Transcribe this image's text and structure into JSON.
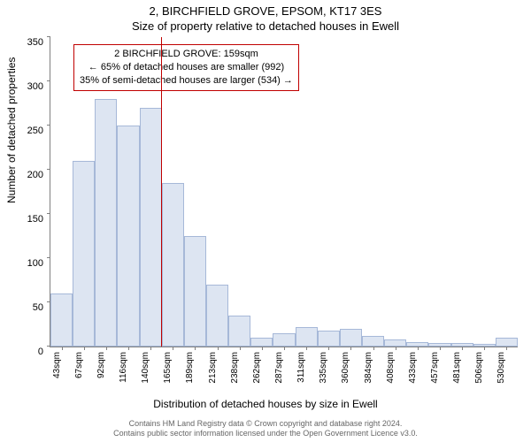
{
  "title_line1": "2, BIRCHFIELD GROVE, EPSOM, KT17 3ES",
  "title_line2": "Size of property relative to detached houses in Ewell",
  "ylabel": "Number of detached properties",
  "xlabel": "Distribution of detached houses by size in Ewell",
  "chart": {
    "type": "histogram",
    "ylim": [
      0,
      350
    ],
    "ytick_step": 50,
    "yticks": [
      0,
      50,
      100,
      150,
      200,
      250,
      300,
      350
    ],
    "categories": [
      "43sqm",
      "67sqm",
      "92sqm",
      "116sqm",
      "140sqm",
      "165sqm",
      "189sqm",
      "213sqm",
      "238sqm",
      "262sqm",
      "287sqm",
      "311sqm",
      "335sqm",
      "360sqm",
      "384sqm",
      "408sqm",
      "433sqm",
      "457sqm",
      "481sqm",
      "506sqm",
      "530sqm"
    ],
    "values": [
      60,
      210,
      280,
      250,
      270,
      185,
      125,
      70,
      35,
      10,
      15,
      22,
      18,
      20,
      12,
      8,
      5,
      4,
      4,
      3,
      10
    ],
    "bar_fill": "#dde5f2",
    "bar_border": "#a6b8d8",
    "axis_color": "#808080",
    "background_color": "#ffffff",
    "marker_line_color": "#c00000",
    "marker_between_index": [
      4,
      5
    ]
  },
  "annotation": {
    "border_color": "#c00000",
    "line1": "2 BIRCHFIELD GROVE: 159sqm",
    "line2": "← 65% of detached houses are smaller (992)",
    "line3": "35% of semi-detached houses are larger (534) →"
  },
  "footer_line1": "Contains HM Land Registry data © Crown copyright and database right 2024.",
  "footer_line2": "Contains public sector information licensed under the Open Government Licence v3.0."
}
